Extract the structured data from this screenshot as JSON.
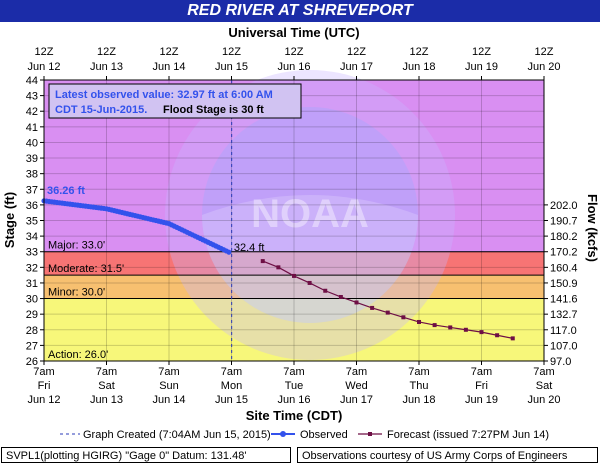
{
  "title": "RED RIVER AT SHREVEPORT",
  "footer": {
    "left": "SVPL1(plotting HGIRG) \"Gage 0\" Datum: 131.48'",
    "right": "Observations courtesy of US Army Corps of Engineers"
  },
  "watermark": "NATIONAL OCEANIC AND ATMOSPHERIC ADMINISTRATION · U.S. DEPARTMENT OF COMMERCE · NOAA",
  "colors": {
    "major": "#d98ff2",
    "moderate": "#f77474",
    "minor": "#f7c070",
    "action": "#f7f77a",
    "observed": "#3352ec",
    "forecast": "#6e0f45",
    "title_bg": "#1b2ca8"
  },
  "chart_data": {
    "type": "line",
    "top_axis_title": "Universal Time (UTC)",
    "xlabel": "Site Time (CDT)",
    "ylabel": "Stage (ft)",
    "y2label": "Flow (kcfs)",
    "ylim": [
      26,
      44
    ],
    "yticks": [
      26,
      27,
      28,
      29,
      30,
      31,
      32,
      33,
      34,
      35,
      36,
      37,
      38,
      39,
      40,
      41,
      42,
      43,
      44
    ],
    "xlim": [
      "2015-06-12 07:00",
      "2015-06-20 07:00"
    ],
    "bottom_ticks": [
      {
        "time": "7am",
        "day": "Fri",
        "date": "Jun 12"
      },
      {
        "time": "7am",
        "day": "Sat",
        "date": "Jun 13"
      },
      {
        "time": "7am",
        "day": "Sun",
        "date": "Jun 14"
      },
      {
        "time": "7am",
        "day": "Mon",
        "date": "Jun 15"
      },
      {
        "time": "7am",
        "day": "Tue",
        "date": "Jun 16"
      },
      {
        "time": "7am",
        "day": "Wed",
        "date": "Jun 17"
      },
      {
        "time": "7am",
        "day": "Thu",
        "date": "Jun 18"
      },
      {
        "time": "7am",
        "day": "Fri",
        "date": "Jun 19"
      },
      {
        "time": "7am",
        "day": "Sat",
        "date": "Jun 20"
      }
    ],
    "top_ticks": [
      {
        "time": "12Z",
        "date": "Jun 12"
      },
      {
        "time": "12Z",
        "date": "Jun 13"
      },
      {
        "time": "12Z",
        "date": "Jun 14"
      },
      {
        "time": "12Z",
        "date": "Jun 15"
      },
      {
        "time": "12Z",
        "date": "Jun 16"
      },
      {
        "time": "12Z",
        "date": "Jun 17"
      },
      {
        "time": "12Z",
        "date": "Jun 18"
      },
      {
        "time": "12Z",
        "date": "Jun 19"
      },
      {
        "time": "12Z",
        "date": "Jun 20"
      }
    ],
    "flow_ticks": [
      {
        "stage": 26,
        "label": "97.0"
      },
      {
        "stage": 27,
        "label": "107.0"
      },
      {
        "stage": 28,
        "label": "117.0"
      },
      {
        "stage": 29,
        "label": "132.7"
      },
      {
        "stage": 30,
        "label": "141.6"
      },
      {
        "stage": 31,
        "label": "150.9"
      },
      {
        "stage": 32,
        "label": "160.4"
      },
      {
        "stage": 33,
        "label": "170.2"
      },
      {
        "stage": 34,
        "label": "180.2"
      },
      {
        "stage": 35,
        "label": "190.7"
      },
      {
        "stage": 36,
        "label": "202.0"
      }
    ],
    "flood_categories": [
      {
        "name": "Major",
        "label": "Major: 33.0'",
        "stage": 33.0
      },
      {
        "name": "Moderate",
        "label": "Moderate: 31.5'",
        "stage": 31.5
      },
      {
        "name": "Minor",
        "label": "Minor: 30.0'",
        "stage": 30.0
      },
      {
        "name": "Action",
        "label": "Action: 26.0'",
        "stage": 26.0
      }
    ],
    "annotation_box": {
      "line1": "Latest observed value: 32.97 ft at 6:00 AM",
      "line2a": "CDT 15-Jun-2015.",
      "line2b": "Flood Stage is 30 ft"
    },
    "max_label": "36.26 ft",
    "latest_label": "32.4 ft",
    "graph_created": "2015-06-15 07:04",
    "observed": {
      "start": "2015-06-12 07:00",
      "end": "2015-06-15 06:00",
      "start_value": 36.26,
      "end_value": 32.97,
      "interval_hours": 1,
      "profile": [
        [
          "2015-06-12 07:00",
          36.26
        ],
        [
          "2015-06-13 07:00",
          35.75
        ],
        [
          "2015-06-14 07:00",
          34.8
        ],
        [
          "2015-06-15 06:00",
          32.97
        ]
      ]
    },
    "forecast": [
      {
        "x": "2015-06-15 19:00",
        "y": 32.4
      },
      {
        "x": "2015-06-16 01:00",
        "y": 32.0
      },
      {
        "x": "2015-06-16 07:00",
        "y": 31.45
      },
      {
        "x": "2015-06-16 13:00",
        "y": 31.0
      },
      {
        "x": "2015-06-16 19:00",
        "y": 30.5
      },
      {
        "x": "2015-06-17 01:00",
        "y": 30.1
      },
      {
        "x": "2015-06-17 07:00",
        "y": 29.75
      },
      {
        "x": "2015-06-17 13:00",
        "y": 29.4
      },
      {
        "x": "2015-06-17 19:00",
        "y": 29.1
      },
      {
        "x": "2015-06-18 01:00",
        "y": 28.8
      },
      {
        "x": "2015-06-18 07:00",
        "y": 28.5
      },
      {
        "x": "2015-06-18 13:00",
        "y": 28.3
      },
      {
        "x": "2015-06-18 19:00",
        "y": 28.15
      },
      {
        "x": "2015-06-19 01:00",
        "y": 28.0
      },
      {
        "x": "2015-06-19 07:00",
        "y": 27.85
      },
      {
        "x": "2015-06-19 13:00",
        "y": 27.65
      },
      {
        "x": "2015-06-19 19:00",
        "y": 27.45
      }
    ],
    "legend": [
      {
        "name": "graph-created",
        "label": "Graph Created (7:04AM Jun 15, 2015)"
      },
      {
        "name": "observed",
        "label": "Observed"
      },
      {
        "name": "forecast",
        "label": "Forecast (issued 7:27PM Jun 14)"
      }
    ]
  }
}
